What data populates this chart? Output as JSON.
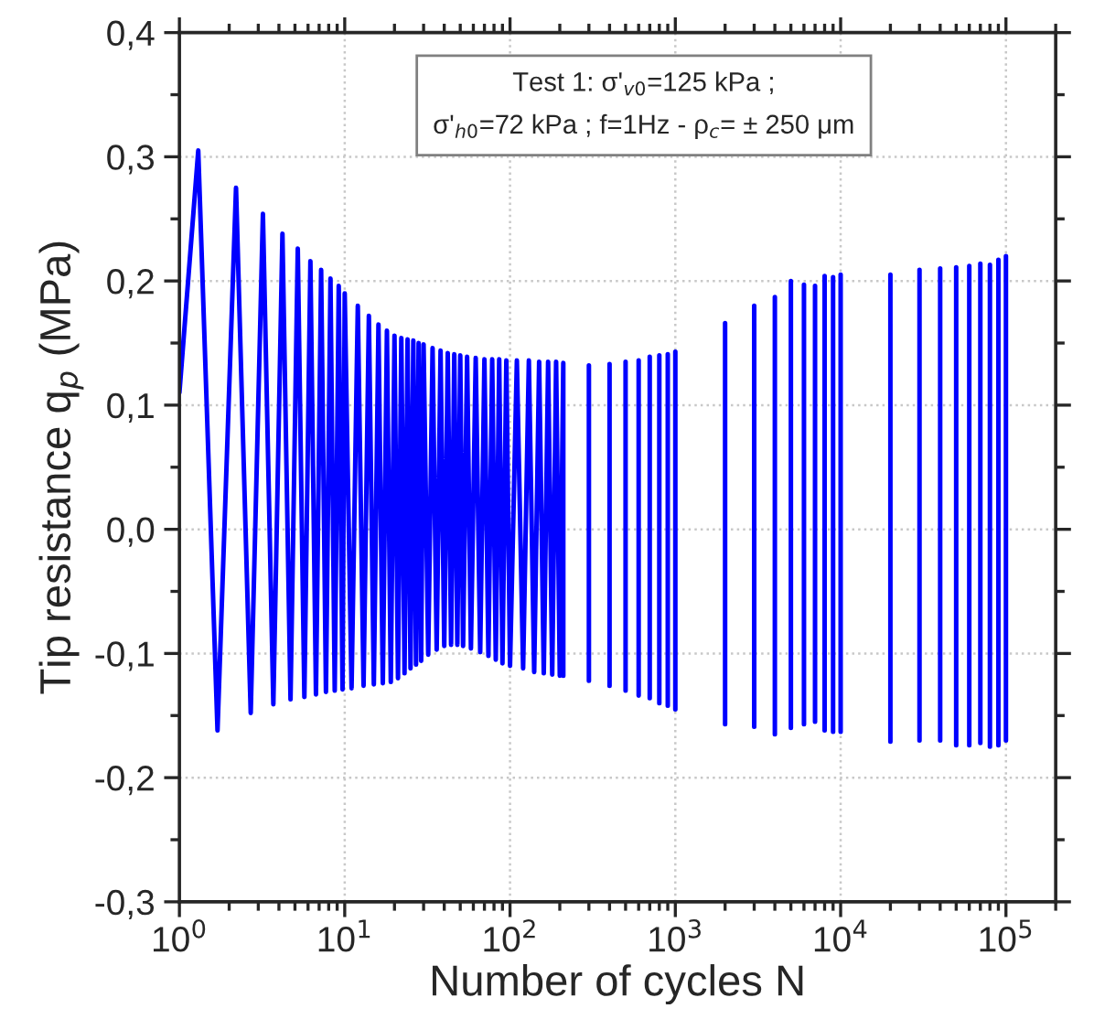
{
  "chart_data": {
    "type": "line",
    "xlabel": "Number of cycles N",
    "ylabel": "Tip resistance q$_{p}$ (MPa)",
    "annotations": [
      "Test 1: σ'$_{v0}$=125 kPa ;\nσ'$_{h0}$=72 kPa ; f=1Hz - ρ$_{c}$= ± 250 μm"
    ],
    "log": "x",
    "xlim": [
      1,
      200000
    ],
    "xticks": [
      {
        "value": 1,
        "label": "10$^{0}$"
      },
      {
        "value": 10,
        "label": "10$^{1}$"
      },
      {
        "value": 100,
        "label": "10$^{2}$"
      },
      {
        "value": 1000,
        "label": "10$^{3}$"
      },
      {
        "value": 10000,
        "label": "10$^{4}$"
      },
      {
        "value": 100000,
        "label": "10$^{5}$"
      }
    ],
    "ylim": [
      -0.3,
      0.4
    ],
    "yticks": [
      {
        "value": -0.3,
        "label": "-0,3"
      },
      {
        "value": -0.2,
        "label": "-0,2"
      },
      {
        "value": -0.1,
        "label": "-0,1"
      },
      {
        "value": 0.0,
        "label": "0,0"
      },
      {
        "value": 0.1,
        "label": "0,1"
      },
      {
        "value": 0.2,
        "label": "0,2"
      },
      {
        "value": 0.3,
        "label": "0,3"
      },
      {
        "value": 0.4,
        "label": "0,4"
      }
    ],
    "grid": true,
    "legend": false,
    "marker": "none",
    "line_style": "solid",
    "series": [
      {
        "color": "#0000ff",
        "x": [
          1,
          1.3,
          1.7,
          2.2,
          2.7,
          3.2,
          3.7,
          4.2,
          4.7,
          5.2,
          5.7,
          6.2,
          6.7,
          7.2,
          7.7,
          8.2,
          8.7,
          9.2,
          9.7,
          10,
          11,
          12,
          13,
          14,
          15,
          16,
          17,
          18,
          19,
          20,
          21,
          22,
          23,
          24,
          25,
          26,
          27,
          28,
          29,
          30,
          32,
          34,
          36,
          38,
          40,
          42,
          44,
          46,
          48,
          50,
          52,
          55,
          58,
          62,
          66,
          70,
          74,
          78,
          82,
          86,
          90,
          95,
          100,
          110,
          120,
          130,
          140,
          150,
          160,
          170,
          180,
          190,
          200,
          210,
          210,
          null,
          300,
          300,
          null,
          400,
          400,
          null,
          500,
          500,
          null,
          600,
          600,
          null,
          700,
          700,
          null,
          800,
          800,
          null,
          900,
          900,
          null,
          1000,
          1000,
          null,
          2000,
          2000,
          null,
          3000,
          3000,
          null,
          4000,
          4000,
          null,
          5000,
          5000,
          null,
          6000,
          6000,
          null,
          7000,
          7000,
          null,
          8000,
          8000,
          null,
          9000,
          9000,
          null,
          10000,
          10000,
          null,
          20000,
          20000,
          null,
          30000,
          30000,
          null,
          40000,
          40000,
          null,
          50000,
          50000,
          null,
          60000,
          60000,
          null,
          70000,
          70000,
          null,
          80000,
          80000,
          null,
          90000,
          90000,
          null,
          100000,
          100000
        ],
        "values": [
          0.11,
          0.305,
          -0.162,
          0.275,
          -0.148,
          0.254,
          -0.141,
          0.238,
          -0.137,
          0.226,
          -0.135,
          0.216,
          -0.133,
          0.209,
          -0.131,
          0.202,
          -0.13,
          0.196,
          -0.129,
          0.19,
          -0.128,
          0.18,
          -0.126,
          0.172,
          -0.125,
          0.165,
          -0.124,
          0.16,
          -0.123,
          0.156,
          -0.12,
          0.154,
          -0.116,
          0.153,
          -0.112,
          0.152,
          -0.109,
          0.15,
          -0.106,
          0.149,
          -0.101,
          0.146,
          -0.097,
          0.144,
          -0.094,
          0.142,
          -0.093,
          0.141,
          -0.093,
          0.14,
          -0.094,
          0.139,
          -0.096,
          0.138,
          -0.099,
          0.137,
          -0.102,
          0.137,
          -0.105,
          0.137,
          -0.108,
          0.136,
          -0.11,
          0.136,
          -0.112,
          0.136,
          -0.115,
          0.135,
          -0.116,
          0.135,
          -0.117,
          0.135,
          -0.118,
          0.134,
          -0.118,
          null,
          0.132,
          -0.122,
          null,
          0.133,
          -0.126,
          null,
          0.135,
          -0.13,
          null,
          0.136,
          -0.134,
          null,
          0.139,
          -0.136,
          null,
          0.14,
          -0.14,
          null,
          0.141,
          -0.142,
          null,
          0.143,
          -0.145,
          null,
          0.166,
          -0.157,
          null,
          0.18,
          -0.159,
          null,
          0.187,
          -0.165,
          null,
          0.2,
          -0.16,
          null,
          0.197,
          -0.157,
          null,
          0.196,
          -0.155,
          null,
          0.204,
          -0.162,
          null,
          0.203,
          -0.163,
          null,
          0.205,
          -0.163,
          null,
          0.205,
          -0.171,
          null,
          0.209,
          -0.17,
          null,
          0.21,
          -0.17,
          null,
          0.211,
          -0.174,
          null,
          0.212,
          -0.174,
          null,
          0.214,
          -0.172,
          null,
          0.213,
          -0.175,
          null,
          0.217,
          -0.174,
          null,
          0.22,
          -0.17
        ]
      }
    ]
  }
}
